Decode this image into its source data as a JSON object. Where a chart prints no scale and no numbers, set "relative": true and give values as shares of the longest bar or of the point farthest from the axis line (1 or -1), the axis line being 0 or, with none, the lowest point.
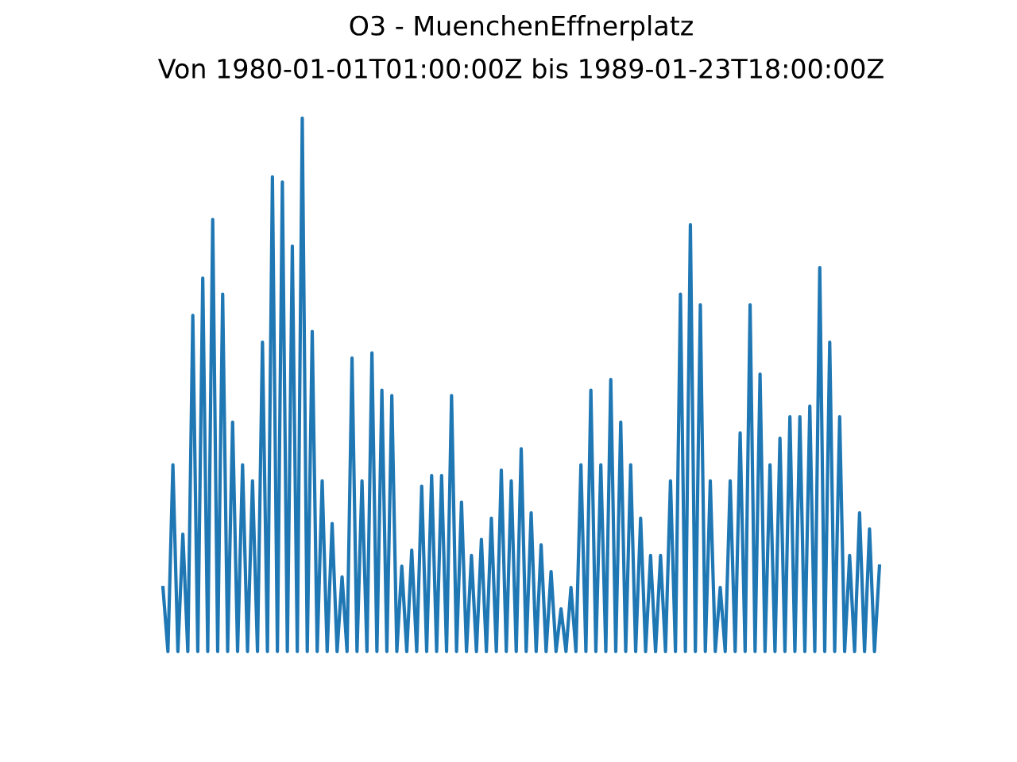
{
  "chart_data": {
    "type": "line",
    "title": "O3 - MuenchenEffnerplatz",
    "subtitle": "Von 1980-01-01T01:00:00Z bis 1989-01-23T18:00:00Z",
    "relative": true,
    "categories": [
      null,
      null,
      null,
      null,
      null,
      null,
      null,
      null,
      null,
      null,
      null,
      null,
      null,
      null,
      null,
      null,
      null,
      null,
      null,
      null,
      null,
      null,
      null,
      null,
      null,
      null,
      null,
      null,
      null,
      null,
      null,
      null,
      null,
      null,
      null,
      null,
      null,
      null,
      null,
      null,
      null,
      null,
      null,
      null,
      null,
      null,
      null,
      null,
      null,
      null,
      null,
      null,
      null,
      null,
      null,
      null,
      null,
      null,
      null,
      null,
      null,
      null,
      null,
      null,
      null,
      null,
      null,
      null,
      null,
      null,
      null,
      null,
      null,
      null,
      null,
      null,
      null,
      null,
      null,
      null,
      null,
      null,
      null,
      null,
      null,
      null,
      null,
      null,
      null,
      null,
      null,
      null,
      null,
      null,
      null,
      null,
      null,
      null,
      null,
      null,
      null,
      null,
      null,
      null,
      null,
      null,
      null,
      null,
      null,
      null,
      null,
      null,
      null,
      null,
      null,
      null,
      null,
      null,
      null,
      null,
      null,
      null,
      null,
      null,
      null,
      null,
      null,
      null,
      null,
      null,
      null,
      null,
      null,
      null,
      null,
      null,
      null,
      null,
      null,
      null,
      null,
      null,
      null,
      null,
      null
    ],
    "series": [
      {
        "color": "#1f77b4",
        "values": [
          0.12,
          0,
          0.35,
          0,
          0.22,
          0,
          0.63,
          0,
          0.7,
          0,
          0.81,
          0,
          0.67,
          0,
          0.43,
          0,
          0.35,
          0,
          0.32,
          0,
          0.58,
          0,
          0.89,
          0,
          0.88,
          0,
          0.76,
          0,
          1,
          0,
          0.6,
          0,
          0.32,
          0,
          0.24,
          0,
          0.14,
          0,
          0.55,
          0,
          0.32,
          0,
          0.56,
          0,
          0.49,
          0,
          0.48,
          0,
          0.16,
          0,
          0.19,
          0,
          0.31,
          0,
          0.33,
          0,
          0.33,
          0,
          0.48,
          0,
          0.28,
          0,
          0.18,
          0,
          0.21,
          0,
          0.25,
          0,
          0.34,
          0,
          0.32,
          0,
          0.38,
          0,
          0.26,
          0,
          0.2,
          0,
          0.15,
          0,
          0.08,
          0,
          0.12,
          0,
          0.35,
          0,
          0.49,
          0,
          0.35,
          0,
          0.51,
          0,
          0.43,
          0,
          0.35,
          0,
          0.25,
          0,
          0.18,
          0,
          0.18,
          0,
          0.32,
          0,
          0.67,
          0,
          0.8,
          0,
          0.65,
          0,
          0.32,
          0,
          0.12,
          0,
          0.32,
          0,
          0.41,
          0,
          0.65,
          0,
          0.52,
          0,
          0.35,
          0,
          0.4,
          0,
          0.44,
          0,
          0.44,
          0,
          0.46,
          0,
          0.72,
          0,
          0.58,
          0,
          0.44,
          0,
          0.18,
          0,
          0.26,
          0,
          0.23,
          0,
          0.16
        ]
      }
    ],
    "marker": "none",
    "line_style": "solid"
  }
}
